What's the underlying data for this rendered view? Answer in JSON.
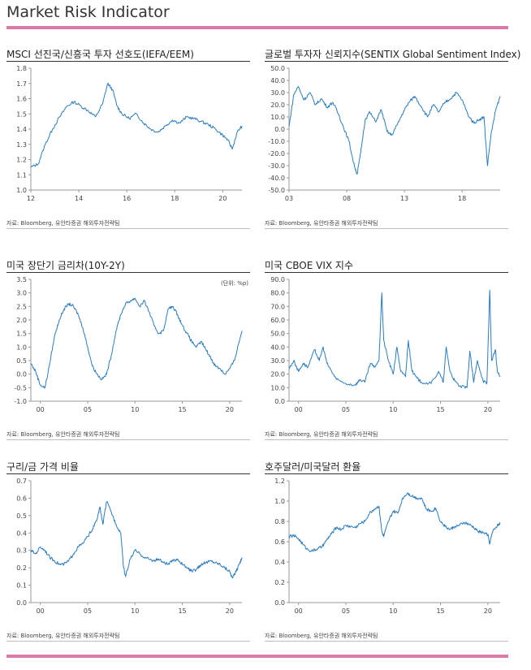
{
  "page": {
    "title": "Market Risk Indicator"
  },
  "source": "자료: Bloomberg, 유안타증권 해외투자전략팀",
  "colors": {
    "line": "#2b7bc0",
    "accent": "#d97aa8",
    "axis": "#9a9a9a"
  },
  "chart_data": [
    {
      "type": "line",
      "title": "MSCI 선진국/신흥국 투자 선호도(IEFA/EEM)",
      "x_ticks": [
        "12",
        "14",
        "16",
        "18",
        "20"
      ],
      "x_range": [
        2012,
        2020.8
      ],
      "ylim": [
        1.0,
        1.8
      ],
      "y_ticks": [
        "1.0",
        "1.1",
        "1.2",
        "1.3",
        "1.4",
        "1.5",
        "1.6",
        "1.7",
        "1.8"
      ],
      "x": [
        2012.0,
        2012.3,
        2012.6,
        2012.9,
        2013.2,
        2013.5,
        2013.8,
        2014.1,
        2014.4,
        2014.7,
        2015.0,
        2015.2,
        2015.4,
        2015.6,
        2015.8,
        2016.1,
        2016.4,
        2016.7,
        2017.0,
        2017.3,
        2017.6,
        2017.9,
        2018.2,
        2018.5,
        2018.8,
        2019.1,
        2019.4,
        2019.7,
        2020.0,
        2020.2,
        2020.4,
        2020.6,
        2020.8
      ],
      "values": [
        1.15,
        1.17,
        1.3,
        1.4,
        1.48,
        1.55,
        1.58,
        1.55,
        1.52,
        1.48,
        1.57,
        1.7,
        1.66,
        1.55,
        1.5,
        1.47,
        1.5,
        1.44,
        1.4,
        1.38,
        1.42,
        1.46,
        1.44,
        1.48,
        1.47,
        1.45,
        1.43,
        1.4,
        1.36,
        1.33,
        1.27,
        1.38,
        1.42
      ],
      "show_grid": false,
      "legend": "none"
    },
    {
      "type": "line",
      "title": "글로벌 투자자 신뢰지수(SENTIX Global Sentiment Index)",
      "x_ticks": [
        "03",
        "08",
        "13",
        "18"
      ],
      "x_range": [
        2003,
        2021.3
      ],
      "ylim": [
        -50,
        50
      ],
      "y_ticks": [
        "50.0",
        "40.0",
        "30.0",
        "20.0",
        "10.0",
        "0.0",
        "-10.0",
        "-20.0",
        "-30.0",
        "-40.0",
        "-50.0"
      ],
      "x": [
        2003.0,
        2003.4,
        2003.8,
        2004.3,
        2004.8,
        2005.3,
        2005.8,
        2006.3,
        2006.8,
        2007.3,
        2007.7,
        2008.2,
        2008.6,
        2008.9,
        2009.2,
        2009.6,
        2010.0,
        2010.5,
        2011.0,
        2011.5,
        2011.9,
        2012.4,
        2012.9,
        2013.4,
        2013.9,
        2014.5,
        2015.0,
        2015.5,
        2016.0,
        2016.5,
        2017.0,
        2017.5,
        2018.0,
        2018.5,
        2019.0,
        2019.5,
        2019.9,
        2020.2,
        2020.5,
        2020.9,
        2021.3
      ],
      "values": [
        2,
        28,
        35,
        24,
        30,
        20,
        25,
        18,
        22,
        12,
        2,
        -10,
        -28,
        -37,
        -20,
        8,
        14,
        6,
        16,
        -2,
        -5,
        4,
        14,
        22,
        27,
        18,
        10,
        20,
        14,
        22,
        25,
        30,
        24,
        12,
        5,
        8,
        10,
        -30,
        -5,
        15,
        27
      ],
      "show_grid": false,
      "legend": "none"
    },
    {
      "type": "line",
      "title": "미국 장단기 금리차(10Y-2Y)",
      "unit": "(단위: %p)",
      "x_ticks": [
        "00",
        "05",
        "10",
        "15",
        "20"
      ],
      "x_range": [
        1999,
        2021.3
      ],
      "ylim": [
        -1.0,
        3.5
      ],
      "y_ticks": [
        "3.5",
        "3.0",
        "2.5",
        "2.0",
        "1.5",
        "1.0",
        "0.5",
        "0.0",
        "-0.5",
        "-1.0"
      ],
      "x": [
        1999.0,
        1999.5,
        2000.0,
        2000.5,
        2001.0,
        2001.5,
        2002.0,
        2002.5,
        2003.0,
        2003.5,
        2004.0,
        2004.5,
        2005.0,
        2005.5,
        2006.0,
        2006.5,
        2007.0,
        2007.5,
        2008.0,
        2008.5,
        2009.0,
        2009.5,
        2010.0,
        2010.5,
        2011.0,
        2011.5,
        2012.0,
        2012.5,
        2013.0,
        2013.5,
        2014.0,
        2014.5,
        2015.0,
        2015.5,
        2016.0,
        2016.5,
        2017.0,
        2017.5,
        2018.0,
        2018.5,
        2019.0,
        2019.5,
        2020.0,
        2020.5,
        2021.0,
        2021.3
      ],
      "values": [
        0.4,
        0.1,
        -0.4,
        -0.5,
        0.4,
        1.4,
        2.0,
        2.4,
        2.6,
        2.5,
        2.2,
        1.7,
        1.0,
        0.3,
        0.0,
        -0.2,
        0.0,
        0.7,
        1.6,
        2.2,
        2.6,
        2.7,
        2.8,
        2.5,
        2.7,
        2.3,
        1.8,
        1.5,
        1.6,
        2.4,
        2.5,
        2.2,
        1.8,
        1.5,
        1.2,
        1.0,
        1.2,
        0.9,
        0.6,
        0.3,
        0.2,
        0.0,
        0.2,
        0.5,
        1.2,
        1.6
      ],
      "show_grid": false,
      "legend": "none"
    },
    {
      "type": "line",
      "title": "미국 CBOE VIX 지수",
      "x_ticks": [
        "00",
        "05",
        "10",
        "15",
        "20"
      ],
      "x_range": [
        1999,
        2021.3
      ],
      "ylim": [
        0,
        90
      ],
      "y_ticks": [
        "90.0",
        "80.0",
        "70.0",
        "60.0",
        "50.0",
        "40.0",
        "30.0",
        "20.0",
        "10.0",
        "0.0"
      ],
      "x": [
        1999.0,
        1999.5,
        2000.0,
        2000.5,
        2001.0,
        2001.7,
        2002.2,
        2002.6,
        2003.0,
        2003.5,
        2004.0,
        2005.0,
        2006.0,
        2006.5,
        2007.0,
        2007.6,
        2008.0,
        2008.5,
        2008.8,
        2009.0,
        2009.5,
        2010.0,
        2010.4,
        2010.8,
        2011.3,
        2011.6,
        2012.0,
        2012.5,
        2013.0,
        2014.0,
        2014.8,
        2015.3,
        2015.6,
        2016.0,
        2016.5,
        2017.0,
        2017.8,
        2018.1,
        2018.5,
        2018.9,
        2019.5,
        2019.9,
        2020.2,
        2020.4,
        2020.8,
        2021.0,
        2021.3
      ],
      "values": [
        24,
        30,
        22,
        28,
        25,
        38,
        30,
        40,
        28,
        22,
        16,
        13,
        12,
        16,
        14,
        28,
        25,
        30,
        80,
        45,
        30,
        20,
        40,
        22,
        18,
        45,
        22,
        17,
        14,
        13,
        22,
        14,
        40,
        22,
        15,
        11,
        10,
        37,
        14,
        30,
        15,
        13,
        82,
        30,
        38,
        22,
        18
      ],
      "show_grid": false,
      "legend": "none"
    },
    {
      "type": "line",
      "title": "구리/금 가격 비율",
      "x_ticks": [
        "00",
        "05",
        "10",
        "15",
        "20"
      ],
      "x_range": [
        1999,
        2021.3
      ],
      "ylim": [
        0.0,
        0.7
      ],
      "y_ticks": [
        "0.7",
        "0.6",
        "0.5",
        "0.4",
        "0.3",
        "0.2",
        "0.1",
        "0.0"
      ],
      "x": [
        1999.0,
        1999.5,
        2000.0,
        2000.5,
        2001.0,
        2001.5,
        2002.0,
        2002.5,
        2003.0,
        2003.5,
        2004.0,
        2004.5,
        2005.0,
        2005.5,
        2006.0,
        2006.3,
        2006.6,
        2007.0,
        2007.5,
        2008.0,
        2008.5,
        2008.8,
        2009.0,
        2009.5,
        2010.0,
        2010.5,
        2011.0,
        2011.5,
        2012.0,
        2012.5,
        2013.0,
        2013.5,
        2014.0,
        2014.5,
        2015.0,
        2015.5,
        2016.0,
        2016.5,
        2017.0,
        2017.5,
        2018.0,
        2018.5,
        2019.0,
        2019.5,
        2020.0,
        2020.3,
        2020.6,
        2021.0,
        2021.3
      ],
      "values": [
        0.3,
        0.28,
        0.32,
        0.3,
        0.26,
        0.24,
        0.22,
        0.22,
        0.24,
        0.28,
        0.32,
        0.34,
        0.38,
        0.42,
        0.48,
        0.55,
        0.45,
        0.58,
        0.52,
        0.45,
        0.4,
        0.2,
        0.15,
        0.25,
        0.3,
        0.28,
        0.26,
        0.25,
        0.24,
        0.25,
        0.23,
        0.22,
        0.24,
        0.25,
        0.22,
        0.2,
        0.18,
        0.19,
        0.22,
        0.23,
        0.24,
        0.23,
        0.22,
        0.2,
        0.18,
        0.14,
        0.17,
        0.22,
        0.26
      ],
      "show_grid": false,
      "legend": "none"
    },
    {
      "type": "line",
      "title": "호주달러/미국달러 환율",
      "x_ticks": [
        "00",
        "05",
        "10",
        "15",
        "20"
      ],
      "x_range": [
        1999,
        2021.3
      ],
      "ylim": [
        0.0,
        1.2
      ],
      "y_ticks": [
        "1.2",
        "1.0",
        "0.8",
        "0.6",
        "0.4",
        "0.2",
        "0.0"
      ],
      "x": [
        1999.0,
        1999.5,
        2000.0,
        2000.5,
        2001.0,
        2001.5,
        2002.0,
        2002.5,
        2003.0,
        2003.5,
        2004.0,
        2004.5,
        2005.0,
        2005.5,
        2006.0,
        2006.5,
        2007.0,
        2007.5,
        2008.0,
        2008.5,
        2008.8,
        2009.0,
        2009.5,
        2010.0,
        2010.5,
        2011.0,
        2011.5,
        2012.0,
        2012.5,
        2013.0,
        2013.5,
        2014.0,
        2014.5,
        2015.0,
        2015.5,
        2016.0,
        2016.5,
        2017.0,
        2017.5,
        2018.0,
        2018.5,
        2019.0,
        2019.5,
        2020.0,
        2020.2,
        2020.5,
        2021.0,
        2021.3
      ],
      "values": [
        0.65,
        0.66,
        0.63,
        0.57,
        0.52,
        0.51,
        0.53,
        0.55,
        0.62,
        0.68,
        0.74,
        0.72,
        0.76,
        0.75,
        0.74,
        0.78,
        0.8,
        0.88,
        0.92,
        0.95,
        0.7,
        0.65,
        0.8,
        0.9,
        0.88,
        1.03,
        1.08,
        1.05,
        1.03,
        1.03,
        0.92,
        0.9,
        0.93,
        0.8,
        0.75,
        0.72,
        0.75,
        0.76,
        0.79,
        0.77,
        0.74,
        0.7,
        0.69,
        0.67,
        0.58,
        0.7,
        0.76,
        0.78
      ],
      "show_grid": false,
      "legend": "none"
    }
  ]
}
